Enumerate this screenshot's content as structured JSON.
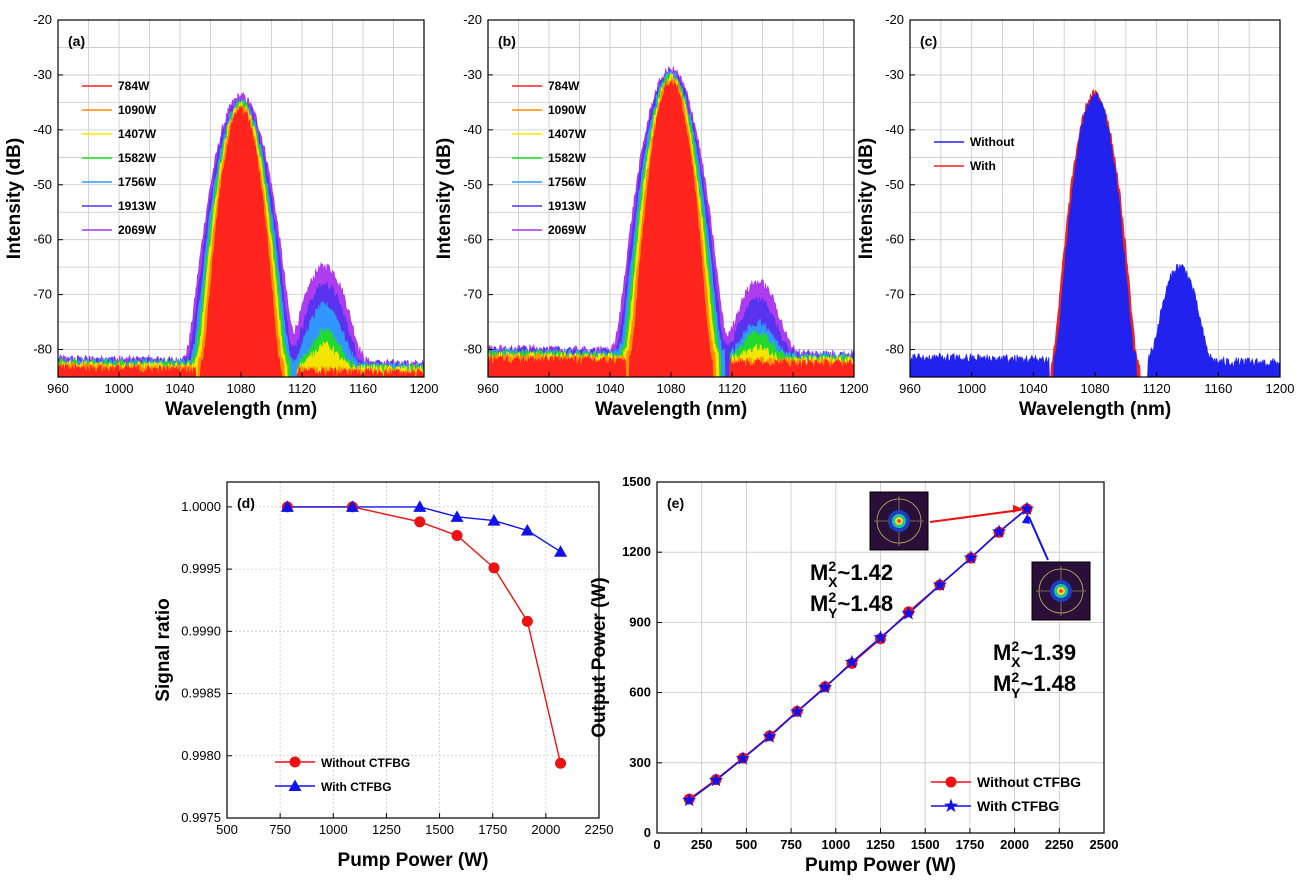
{
  "chart_data": [
    {
      "id": "a",
      "type": "line",
      "panel_label": "(a)",
      "xlabel": "Wavelength (nm)",
      "ylabel": "Intensity (dB)",
      "xlim": [
        960,
        1200
      ],
      "ylim": [
        -85,
        -20
      ],
      "xticks": [
        960,
        1000,
        1040,
        1080,
        1120,
        1160,
        1200
      ],
      "yticks": [
        -80,
        -70,
        -60,
        -50,
        -40,
        -30,
        -20
      ],
      "grid": true,
      "legend_position": "top-left",
      "series": [
        {
          "name": "784W",
          "color": "#ff2020",
          "main_peak": -36.5,
          "raman_peak": -85,
          "noise_floor": -83.5
        },
        {
          "name": "1090W",
          "color": "#ff8a00",
          "main_peak": -36.0,
          "raman_peak": -85,
          "noise_floor": -83.2
        },
        {
          "name": "1407W",
          "color": "#ffe600",
          "main_peak": -35.6,
          "raman_peak": -81.5,
          "noise_floor": -82.8
        },
        {
          "name": "1582W",
          "color": "#22dd22",
          "main_peak": -35.3,
          "raman_peak": -78,
          "noise_floor": -82.5
        },
        {
          "name": "1756W",
          "color": "#2f9cff",
          "main_peak": -35.0,
          "raman_peak": -72.5,
          "noise_floor": -82.2
        },
        {
          "name": "1913W",
          "color": "#5533ee",
          "main_peak": -34.6,
          "raman_peak": -68.5,
          "noise_floor": -82.0
        },
        {
          "name": "2069W",
          "color": "#aa33ee",
          "main_peak": -34.0,
          "raman_peak": -65,
          "noise_floor": -81.8
        }
      ],
      "main_center": 1080,
      "raman_center": 1135
    },
    {
      "id": "b",
      "type": "line",
      "panel_label": "(b)",
      "xlabel": "Wavelength (nm)",
      "ylabel": "Intensity (dB)",
      "xlim": [
        960,
        1200
      ],
      "ylim": [
        -85,
        -20
      ],
      "xticks": [
        960,
        1000,
        1040,
        1080,
        1120,
        1160,
        1200
      ],
      "yticks": [
        -80,
        -70,
        -60,
        -50,
        -40,
        -30,
        -20
      ],
      "grid": true,
      "legend_position": "top-left",
      "series": [
        {
          "name": "784W",
          "color": "#ff2020",
          "main_peak": -31.5,
          "raman_peak": -85,
          "noise_floor": -81.8
        },
        {
          "name": "1090W",
          "color": "#ff8a00",
          "main_peak": -31.0,
          "raman_peak": -85,
          "noise_floor": -81.5
        },
        {
          "name": "1407W",
          "color": "#ffe600",
          "main_peak": -30.6,
          "raman_peak": -84,
          "noise_floor": -81.2
        },
        {
          "name": "1582W",
          "color": "#22dd22",
          "main_peak": -30.3,
          "raman_peak": -79,
          "noise_floor": -80.8
        },
        {
          "name": "1756W",
          "color": "#2f9cff",
          "main_peak": -30.0,
          "raman_peak": -76.5,
          "noise_floor": -80.5
        },
        {
          "name": "1913W",
          "color": "#5533ee",
          "main_peak": -29.6,
          "raman_peak": -71.5,
          "noise_floor": -80.2
        },
        {
          "name": "2069W",
          "color": "#aa33ee",
          "main_peak": -29.2,
          "raman_peak": -68,
          "noise_floor": -80.0
        }
      ],
      "main_center": 1080,
      "raman_center": 1137
    },
    {
      "id": "c",
      "type": "line",
      "panel_label": "(c)",
      "xlabel": "Wavelength (nm)",
      "ylabel": "Intensity (dB)",
      "xlim": [
        960,
        1200
      ],
      "ylim": [
        -85,
        -20
      ],
      "xticks": [
        960,
        1000,
        1040,
        1080,
        1120,
        1160,
        1200
      ],
      "yticks": [
        -80,
        -70,
        -60,
        -50,
        -40,
        -30,
        -20
      ],
      "grid": true,
      "legend_position": "center-left",
      "series": [
        {
          "name": "Without",
          "color": "#2222ee",
          "main_peak": -34.0,
          "raman_peak": -65,
          "noise_floor": -81.5
        },
        {
          "name": "With",
          "color": "#ee2222",
          "main_peak": -33.5,
          "raman_peak": -72.5,
          "noise_floor": -83.0
        }
      ],
      "main_center": 1080,
      "raman_center": 1135
    },
    {
      "id": "d",
      "type": "line",
      "panel_label": "(d)",
      "xlabel": "Pump Power (W)",
      "ylabel": "Signal ratio",
      "xlim": [
        500,
        2250
      ],
      "ylim": [
        0.9975,
        1.0002
      ],
      "xticks": [
        500,
        750,
        1000,
        1250,
        1500,
        1750,
        2000,
        2250
      ],
      "yticks": [
        "0.9975",
        "0.9980",
        "0.9985",
        "0.9990",
        "0.9995",
        "1.0000"
      ],
      "grid": true,
      "legend_position": "bottom-left",
      "series": [
        {
          "name": "Without CTFBG",
          "color": "#ee1111",
          "marker": "circle",
          "x": [
            784,
            1090,
            1407,
            1582,
            1756,
            1913,
            2069
          ],
          "y": [
            1.0,
            1.0,
            0.99988,
            0.99977,
            0.99951,
            0.99908,
            0.99794
          ]
        },
        {
          "name": "With CTFBG",
          "color": "#1111ee",
          "marker": "triangle",
          "x": [
            784,
            1090,
            1407,
            1582,
            1756,
            1913,
            2069
          ],
          "y": [
            1.0,
            1.0,
            1.0,
            0.99992,
            0.99989,
            0.99981,
            0.99964
          ]
        }
      ]
    },
    {
      "id": "e",
      "type": "line",
      "panel_label": "(e)",
      "xlabel": "Pump Power (W)",
      "ylabel": "Output Power (W)",
      "xlim": [
        0,
        2500
      ],
      "ylim": [
        0,
        1500
      ],
      "xticks": [
        0,
        250,
        500,
        750,
        1000,
        1250,
        1500,
        1750,
        2000,
        2250,
        2500
      ],
      "yticks": [
        0,
        300,
        600,
        900,
        1200,
        1500
      ],
      "grid": true,
      "legend_position": "bottom-right",
      "series": [
        {
          "name": "Without CTFBG",
          "color": "#ee1111",
          "marker": "circle",
          "x": [
            180,
            330,
            480,
            630,
            784,
            940,
            1090,
            1250,
            1407,
            1582,
            1756,
            1913,
            2069
          ],
          "y": [
            145,
            228,
            320,
            415,
            520,
            625,
            725,
            830,
            945,
            1060,
            1175,
            1285,
            1385
          ]
        },
        {
          "name": "With CTFBG",
          "color": "#1111ee",
          "marker": "star",
          "x": [
            180,
            330,
            480,
            630,
            784,
            940,
            1090,
            1250,
            1407,
            1582,
            1756,
            1913,
            2069
          ],
          "y": [
            140,
            225,
            318,
            412,
            518,
            622,
            730,
            835,
            938,
            1060,
            1176,
            1287,
            1385
          ]
        }
      ],
      "annotations": [
        {
          "m2x": "1.42",
          "m2y": "1.48"
        },
        {
          "m2x": "1.39",
          "m2y": "1.48"
        }
      ],
      "annotation_text": {
        "m": "M",
        "sup": "2",
        "x": "X",
        "y": "Y",
        "tilde": "~"
      }
    }
  ]
}
